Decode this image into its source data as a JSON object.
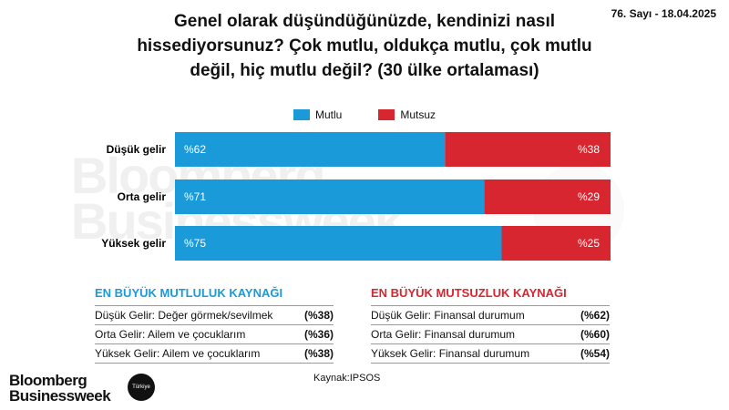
{
  "issue": "76. Sayı - 18.04.2025",
  "chart_data": {
    "type": "bar",
    "stacked": true,
    "orientation": "horizontal",
    "title": "Genel olarak düşündüğünüzde, kendinizi nasıl hissediyorsunuz? Çok mutlu, oldukça mutlu, çok mutlu değil, hiç mutlu değil? (30 ülke ortalaması)",
    "categories": [
      "Düşük gelir",
      "Orta gelir",
      "Yüksek gelir"
    ],
    "series": [
      {
        "name": "Mutlu",
        "color": "#1b9ad9",
        "values": [
          62,
          71,
          75
        ],
        "labels": [
          "%62",
          "%71",
          "%75"
        ]
      },
      {
        "name": "Mutsuz",
        "color": "#d7262f",
        "values": [
          38,
          29,
          25
        ],
        "labels": [
          "%38",
          "%29",
          "%25"
        ]
      }
    ],
    "xlim": [
      0,
      100
    ]
  },
  "legend": {
    "happy": "Mutlu",
    "unhappy": "Mutsuz",
    "happy_color": "#1b9ad9",
    "unhappy_color": "#d7262f"
  },
  "watermark": {
    "line1": "Bloomberg",
    "line2": "Businessweek"
  },
  "happiness": {
    "heading": "EN BÜYÜK MUTLULUK KAYNAĞI",
    "heading_color": "#1b9ad9",
    "rows": [
      {
        "label": "Düşük Gelir: Değer görmek/sevilmek",
        "value": "(%38)"
      },
      {
        "label": "Orta Gelir: Ailem ve çocuklarım",
        "value": "(%36)"
      },
      {
        "label": "Yüksek Gelir: Ailem ve çocuklarım",
        "value": "(%38)"
      }
    ]
  },
  "unhappiness": {
    "heading": "EN BÜYÜK MUTSUZLUK KAYNAĞI",
    "heading_color": "#d7262f",
    "rows": [
      {
        "label": "Düşük Gelir: Finansal durumum",
        "value": "(%62)"
      },
      {
        "label": "Orta Gelir: Finansal durumum",
        "value": "(%60)"
      },
      {
        "label": "Yüksek Gelir: Finansal durumum",
        "value": "(%54)"
      }
    ]
  },
  "source": "Kaynak:IPSOS",
  "logo": {
    "line1": "Bloomberg",
    "line2": "Businessweek",
    "badge": "Türkiye"
  }
}
